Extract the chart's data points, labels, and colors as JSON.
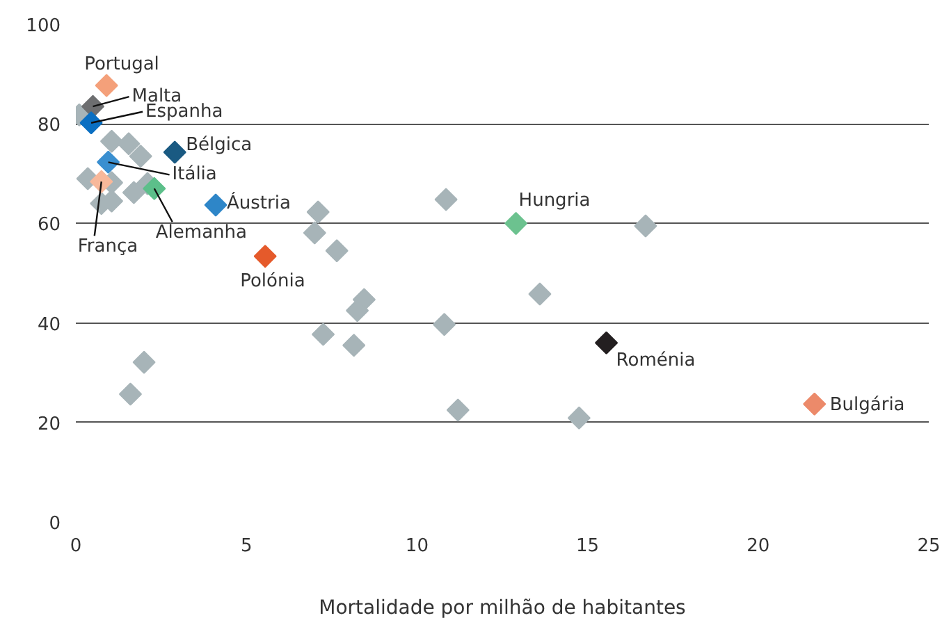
{
  "chart_data": {
    "type": "scatter",
    "xlabel": "Mortalidade por milhão de habitantes",
    "xlim": [
      0,
      25
    ],
    "ylim": [
      0,
      100
    ],
    "xticks": [
      0,
      5,
      10,
      15,
      20,
      25
    ],
    "yticks": [
      0,
      20,
      40,
      60,
      80,
      100
    ],
    "grid": "y",
    "marker": "diamond",
    "series": [
      {
        "color": "#a7b4b8",
        "x": [
          0.1,
          0.35,
          1.05,
          1.55,
          1.9,
          1.05,
          0.75,
          1.05,
          1.7,
          2.1,
          10.85,
          7.1,
          7.0,
          7.65,
          8.45,
          8.25,
          7.25,
          8.15,
          10.8,
          2.0,
          1.6,
          11.2,
          16.7,
          13.6,
          14.75
        ],
        "values": [
          81.8,
          69,
          76.5,
          76,
          73.5,
          68.2,
          64,
          64.5,
          66.2,
          68,
          64.8,
          62.3,
          58.1,
          54.5,
          44.7,
          42.5,
          37.7,
          35.5,
          39.7,
          32.1,
          25.7,
          22.5,
          59.5,
          45.8,
          20.9
        ]
      },
      {
        "name": "Portugal",
        "color": "#f4a07a",
        "x": [
          0.9
        ],
        "values": [
          87.7
        ]
      },
      {
        "name": "Malta",
        "color": "#6d6e70",
        "x": [
          0.5
        ],
        "values": [
          83.5
        ]
      },
      {
        "name": "Espanha",
        "color": "#0a6fc2",
        "x": [
          0.45
        ],
        "values": [
          80.2
        ]
      },
      {
        "name": "Bélgica",
        "color": "#1a5a82",
        "x": [
          2.9
        ],
        "values": [
          74.3
        ]
      },
      {
        "name": "Itália",
        "color": "#3a8fd0",
        "x": [
          0.95
        ],
        "values": [
          72.3
        ]
      },
      {
        "name": "França",
        "color": "#f8b89a",
        "x": [
          0.75
        ],
        "values": [
          68.4
        ]
      },
      {
        "name": "Alemanha",
        "color": "#5cbf8a",
        "x": [
          2.3
        ],
        "values": [
          67
        ]
      },
      {
        "name": "Áustria",
        "color": "#2e86c8",
        "x": [
          4.1
        ],
        "values": [
          63.7
        ]
      },
      {
        "name": "Polónia",
        "color": "#e55a2b",
        "x": [
          5.55
        ],
        "values": [
          53.4
        ]
      },
      {
        "name": "Hungria",
        "color": "#6cc28f",
        "x": [
          12.9
        ],
        "values": [
          60
        ]
      },
      {
        "name": "Roménia",
        "color": "#231f20",
        "x": [
          15.55
        ],
        "values": [
          36
        ]
      },
      {
        "name": "Bulgária",
        "color": "#ec8a6a",
        "x": [
          21.65
        ],
        "values": [
          23.7
        ]
      }
    ]
  }
}
